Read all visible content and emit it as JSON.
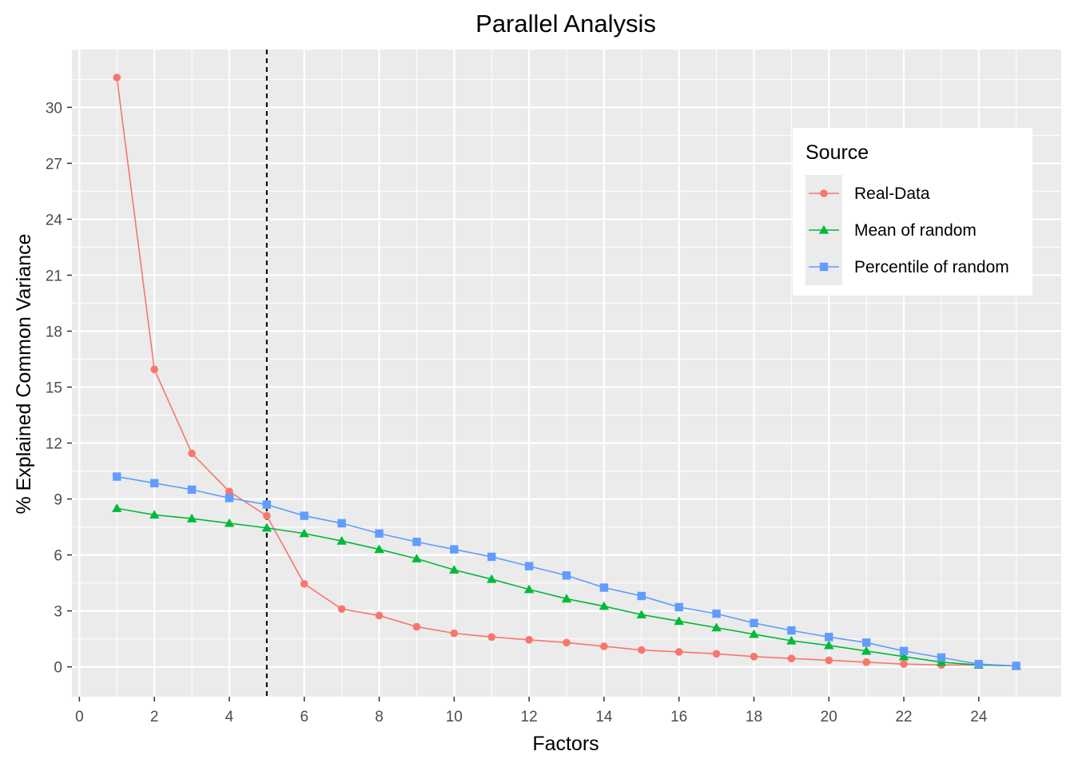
{
  "chart_data": {
    "type": "line",
    "title": "Parallel Analysis",
    "xlabel": "Factors",
    "ylabel": "% Explained Common Variance",
    "xlim": [
      -0.2,
      26.2
    ],
    "ylim": [
      -1.6,
      33.1
    ],
    "x_ticks": [
      0,
      2,
      4,
      6,
      8,
      10,
      12,
      14,
      16,
      18,
      20,
      22,
      24
    ],
    "y_ticks": [
      0,
      3,
      6,
      9,
      12,
      15,
      18,
      21,
      24,
      27,
      30
    ],
    "grid": true,
    "vline": {
      "x": 5,
      "style": "dashed",
      "color": "#000000"
    },
    "legend": {
      "title": "Source",
      "position": "top-right"
    },
    "x": [
      1,
      2,
      3,
      4,
      5,
      6,
      7,
      8,
      9,
      10,
      11,
      12,
      13,
      14,
      15,
      16,
      17,
      18,
      19,
      20,
      21,
      22,
      23,
      24,
      25
    ],
    "series": [
      {
        "name": "Real-Data",
        "color": "#F8766D",
        "marker": "circle",
        "values": [
          31.6,
          15.95,
          11.45,
          9.4,
          8.1,
          4.45,
          3.1,
          2.75,
          2.15,
          1.8,
          1.6,
          1.45,
          1.3,
          1.1,
          0.9,
          0.8,
          0.7,
          0.55,
          0.45,
          0.35,
          0.25,
          0.15,
          0.1,
          0.1,
          0.05
        ]
      },
      {
        "name": "Mean of random",
        "color": "#00BA38",
        "marker": "triangle",
        "values": [
          8.5,
          8.15,
          7.95,
          7.7,
          7.45,
          7.15,
          6.75,
          6.3,
          5.8,
          5.2,
          4.7,
          4.15,
          3.65,
          3.25,
          2.8,
          2.45,
          2.1,
          1.75,
          1.4,
          1.15,
          0.85,
          0.55,
          0.25,
          0.1,
          0.05
        ]
      },
      {
        "name": "Percentile of random",
        "color": "#619CFF",
        "marker": "square",
        "values": [
          10.2,
          9.85,
          9.5,
          9.05,
          8.7,
          8.1,
          7.7,
          7.15,
          6.7,
          6.3,
          5.9,
          5.4,
          4.9,
          4.25,
          3.8,
          3.2,
          2.85,
          2.35,
          1.95,
          1.6,
          1.3,
          0.85,
          0.5,
          0.15,
          0.05
        ]
      }
    ]
  }
}
